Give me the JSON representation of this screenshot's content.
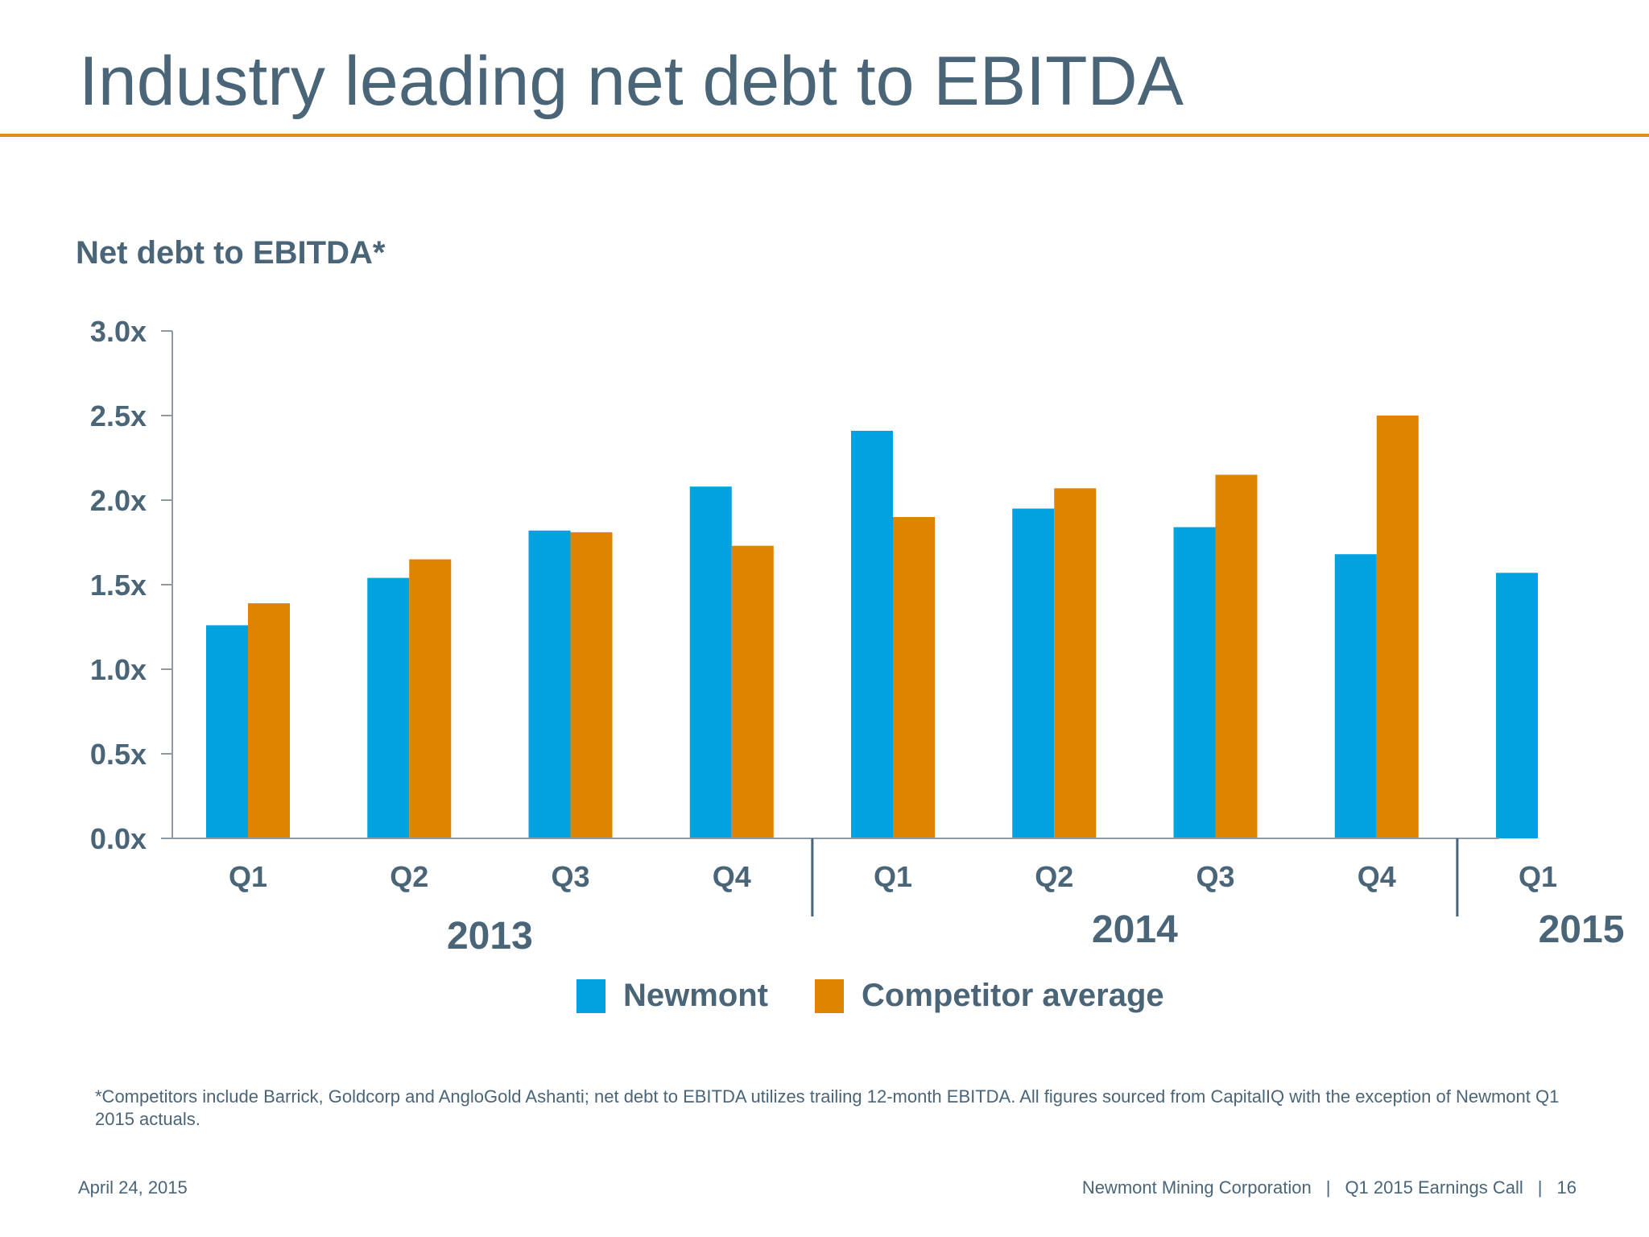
{
  "slide": {
    "title": "Industry leading net debt to EBITDA",
    "footnote": "*Competitors include Barrick, Goldcorp and AngloGold Ashanti; net debt to EBITDA utilizes trailing 12-month EBITDA. All figures sourced from CapitalIQ with the exception of Newmont Q1 2015 actuals.",
    "footer": {
      "date": "April 24, 2015",
      "company": "Newmont Mining Corporation",
      "separator": "|",
      "event": "Q1 2015 Earnings Call",
      "page": "16"
    }
  },
  "colors": {
    "newmont": "#00a3e0",
    "competitor": "#e08400",
    "text": "#4a6578",
    "accent_rule": "#e08a1e",
    "axis": "#8c9aa5"
  },
  "chart_data": {
    "type": "bar",
    "title": "Net debt to EBITDA*",
    "categories": [
      "Q1",
      "Q2",
      "Q3",
      "Q4",
      "Q1",
      "Q2",
      "Q3",
      "Q4",
      "Q1"
    ],
    "year_groups": [
      {
        "label": "2013",
        "quarters": 4
      },
      {
        "label": "2014",
        "quarters": 4
      },
      {
        "label": "2015",
        "quarters": 1
      }
    ],
    "series": [
      {
        "name": "Newmont",
        "values": [
          1.26,
          1.54,
          1.82,
          2.08,
          2.41,
          1.95,
          1.84,
          1.68,
          1.57
        ]
      },
      {
        "name": "Competitor average",
        "values": [
          1.39,
          1.65,
          1.81,
          1.73,
          1.9,
          2.07,
          2.15,
          2.5,
          null
        ]
      }
    ],
    "yticks": [
      "0.0x",
      "0.5x",
      "1.0x",
      "1.5x",
      "2.0x",
      "2.5x",
      "3.0x"
    ],
    "ylim": [
      0,
      3.0
    ],
    "legend_position": "bottom",
    "grid": false
  }
}
